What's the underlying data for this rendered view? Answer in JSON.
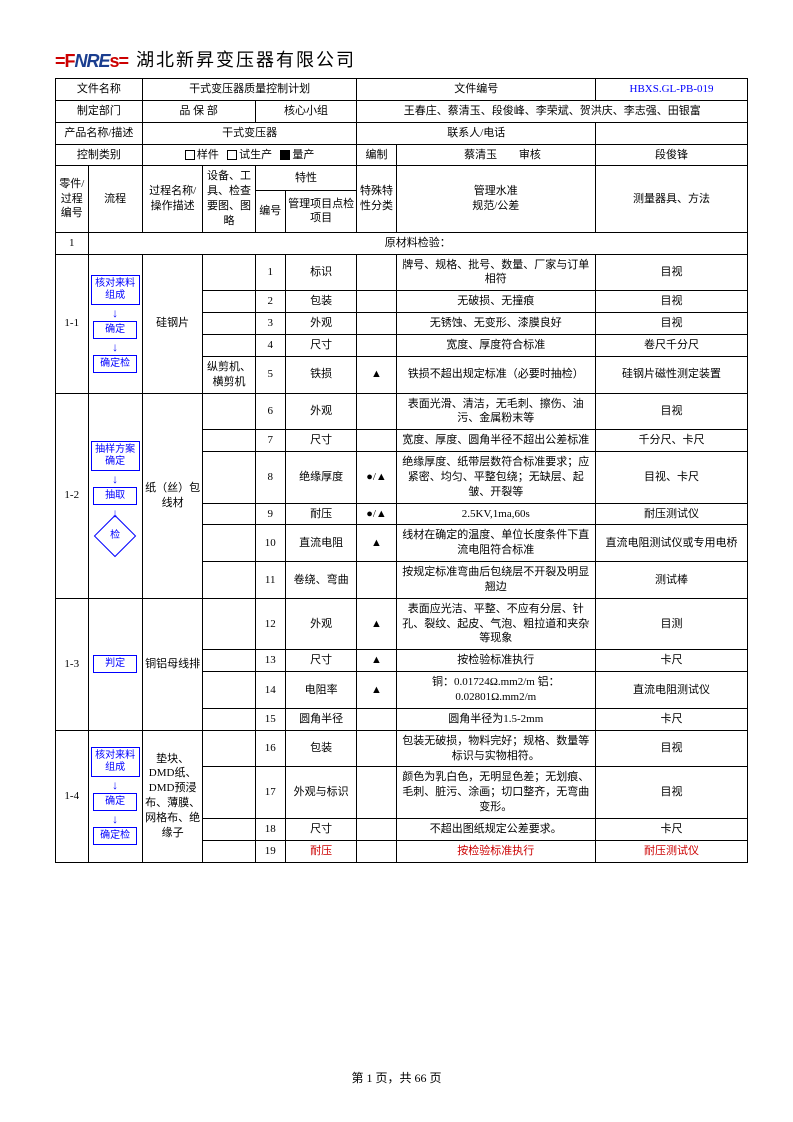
{
  "company": "湖北新昇变压器有限公司",
  "doc_code": "HBXS.GL-PB-019",
  "h": {
    "文件名称": "文件名称",
    "文件编号": "文件编号",
    "doc_title": "干式变压器质量控制计划",
    "制定部门": "制定部门",
    "dept": "品 保 部",
    "核心小组": "核心小组",
    "team": "王春庄、蔡清玉、段俊峰、李荣斌、贺洪庆、李志强、田银富",
    "产品名称描述": "产品名称/描述",
    "prod": "干式变压器",
    "联系人电话": "联系人/电话",
    "控制类别": "控制类别",
    "样件": "样件",
    "试生产": "试生产",
    "量产": "量产",
    "编制": "编制",
    "编制v": "蔡清玉",
    "审核": "审核",
    "审核v": "段俊锋"
  },
  "th": {
    "c1": "零件/过程编号",
    "c2": "流程",
    "c3": "过程名称/操作描述",
    "c4": "设备、工具、检查要图、图略",
    "c5": "特性",
    "c5a": "编号",
    "c5b": "管理项目点检项目",
    "c6": "特殊特性分类",
    "c7": "管理水准",
    "c7b": "规范/公差",
    "c8": "测量器具、方法"
  },
  "sec1": {
    "id": "1",
    "label": "原材料检验："
  },
  "g": [
    {
      "id": "1-1",
      "proc": "硅钢片",
      "flow": [
        "核对来料组成",
        "确定",
        "确定检"
      ],
      "rows": [
        {
          "n": "1",
          "item": "标识",
          "cls": "",
          "std": "牌号、规格、批号、数量、厂家与订单相符",
          "tool": "目视",
          "eq": ""
        },
        {
          "n": "2",
          "item": "包装",
          "cls": "",
          "std": "无破损、无撞痕",
          "tool": "目视",
          "eq": ""
        },
        {
          "n": "3",
          "item": "外观",
          "cls": "",
          "std": "无锈蚀、无变形、漆膜良好",
          "tool": "目视",
          "eq": ""
        },
        {
          "n": "4",
          "item": "尺寸",
          "cls": "",
          "std": "宽度、厚度符合标准",
          "tool": "卷尺千分尺",
          "eq": ""
        },
        {
          "n": "5",
          "item": "铁损",
          "cls": "▲",
          "std": "铁损不超出规定标准（必要时抽检）",
          "tool": "硅钢片磁性测定装置",
          "eq": "纵剪机、横剪机"
        }
      ]
    },
    {
      "id": "1-2",
      "proc": "纸（丝）包线材",
      "flow": [
        "抽样方案确定",
        "抽取"
      ],
      "diamond": "检",
      "rows": [
        {
          "n": "6",
          "item": "外观",
          "cls": "",
          "std": "表面光滑、清洁，无毛刺、擦伤、油污、金属粉末等",
          "tool": "目视",
          "eq": ""
        },
        {
          "n": "7",
          "item": "尺寸",
          "cls": "",
          "std": "宽度、厚度、圆角半径不超出公差标准",
          "tool": "千分尺、卡尺",
          "eq": ""
        },
        {
          "n": "8",
          "item": "绝缘厚度",
          "cls": "●/▲",
          "std": "绝缘厚度、纸带层数符合标准要求；应紧密、均匀、平整包绕；无缺层、起皱、开裂等",
          "tool": "目视、卡尺",
          "eq": ""
        },
        {
          "n": "9",
          "item": "耐压",
          "cls": "●/▲",
          "std": "2.5KV,1ma,60s",
          "tool": "耐压测试仪",
          "eq": ""
        },
        {
          "n": "10",
          "item": "直流电阻",
          "cls": "▲",
          "std": "线材在确定的温度、单位长度条件下直流电阻符合标准",
          "tool": "直流电阻测试仪或专用电桥",
          "eq": ""
        },
        {
          "n": "11",
          "item": "卷绕、弯曲",
          "cls": "",
          "std": "按规定标准弯曲后包绕层不开裂及明显翘边",
          "tool": "测试棒",
          "eq": ""
        }
      ]
    },
    {
      "id": "1-3",
      "proc": "铜铝母线排",
      "flow": [
        "判定"
      ],
      "rows": [
        {
          "n": "12",
          "item": "外观",
          "cls": "▲",
          "std": "表面应光洁、平整、不应有分层、针孔、裂纹、起皮、气泡、粗拉道和夹杂等现象",
          "tool": "目测",
          "eq": ""
        },
        {
          "n": "13",
          "item": "尺寸",
          "cls": "▲",
          "std": "按检验标准执行",
          "tool": "卡尺",
          "eq": ""
        },
        {
          "n": "14",
          "item": "电阻率",
          "cls": "▲",
          "std": "铜：0.01724Ω.mm2/m 铝：0.02801Ω.mm2/m",
          "tool": "直流电阻测试仪",
          "eq": ""
        },
        {
          "n": "15",
          "item": "圆角半径",
          "cls": "",
          "std": "圆角半径为1.5-2mm",
          "tool": "卡尺",
          "eq": ""
        }
      ]
    },
    {
      "id": "1-4",
      "proc": "垫块、DMD纸、DMD预浸布、薄膜、网格布、绝缘子",
      "flow": [
        "核对来料组成",
        "确定",
        "确定检"
      ],
      "rows": [
        {
          "n": "16",
          "item": "包装",
          "cls": "",
          "std": "包装无破损，物料完好；规格、数量等标识与实物相符。",
          "tool": "目视",
          "eq": ""
        },
        {
          "n": "17",
          "item": "外观与标识",
          "cls": "",
          "std": "颜色为乳白色，无明显色差；无划痕、毛刺、脏污、涂画；切口整齐，无弯曲变形。",
          "tool": "目视",
          "eq": ""
        },
        {
          "n": "18",
          "item": "尺寸",
          "cls": "",
          "std": "不超出图纸规定公差要求。",
          "tool": "卡尺",
          "eq": ""
        },
        {
          "n": "19",
          "item": "耐压",
          "cls": "",
          "std": "按检验标准执行",
          "tool": "耐压测试仪",
          "eq": "",
          "red": true
        }
      ]
    }
  ],
  "footer": "第 1 页，共 66 页"
}
